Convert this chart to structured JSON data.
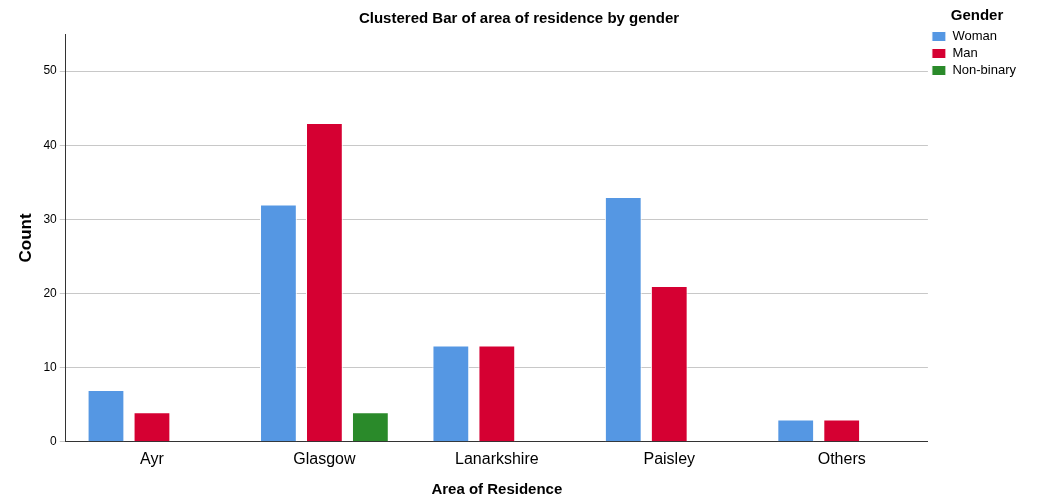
{
  "chart_data": {
    "type": "bar",
    "title": "Clustered Bar of area of residence by gender",
    "xlabel": "Area of Residence",
    "ylabel": "Count",
    "legend_title": "Gender",
    "categories": [
      "Ayr",
      "Glasgow",
      "Lanarkshire",
      "Paisley",
      "Others"
    ],
    "series": [
      {
        "name": "Woman",
        "color": "#5597e3",
        "values": [
          7,
          32,
          13,
          33,
          3
        ]
      },
      {
        "name": "Man",
        "color": "#d50032",
        "values": [
          4,
          43,
          13,
          21,
          3
        ]
      },
      {
        "name": "Non-binary",
        "color": "#2a8a2a",
        "values": [
          null,
          4,
          null,
          null,
          null
        ]
      }
    ],
    "ylim": [
      0,
      55
    ],
    "yticks": [
      0,
      10,
      20,
      30,
      40,
      50
    ],
    "grid": "y",
    "legend": "top right"
  }
}
